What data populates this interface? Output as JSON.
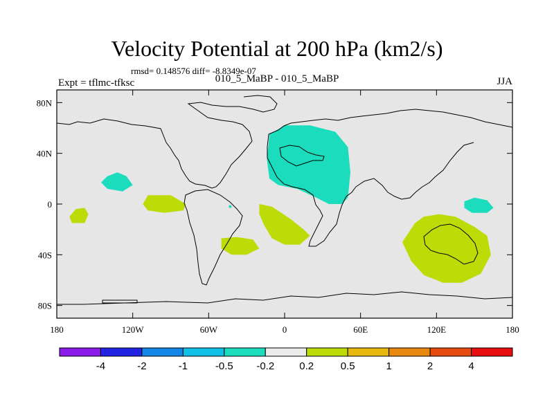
{
  "chart_data": {
    "type": "heatmap",
    "title": "Velocity Potential at 200 hPa (km2/s)",
    "stats": "rmsd= 0.148576 diff= -8.8349e-07",
    "left_label": "Expt = tflmc-tfksc",
    "center_label": "010_5_MaBP - 010_5_MaBP",
    "right_label": "JJA",
    "projection": "cylindrical-equidistant",
    "xlim": [
      -180,
      180
    ],
    "ylim": [
      -90,
      90
    ],
    "x_ticks": [
      {
        "value": -180,
        "label": "180"
      },
      {
        "value": -120,
        "label": "120W"
      },
      {
        "value": -60,
        "label": "60W"
      },
      {
        "value": 0,
        "label": "0"
      },
      {
        "value": 60,
        "label": "60E"
      },
      {
        "value": 120,
        "label": "120E"
      },
      {
        "value": 180,
        "label": "180"
      }
    ],
    "y_ticks": [
      {
        "value": 80,
        "label": "80N"
      },
      {
        "value": 40,
        "label": "40N"
      },
      {
        "value": 0,
        "label": "0"
      },
      {
        "value": -40,
        "label": "40S"
      },
      {
        "value": -80,
        "label": "80S"
      }
    ],
    "background_color": "#e6e6e6",
    "colorbar": {
      "colors": [
        "#8a1be8",
        "#2323e3",
        "#1487e6",
        "#0ebfe6",
        "#1cdcbe",
        "#ebebeb",
        "#bddc07",
        "#e6b70c",
        "#e8880e",
        "#e64a0e",
        "#e60e0e"
      ],
      "labels": [
        "-4",
        "-2",
        "-1",
        "-0.5",
        "-0.2",
        "0.2",
        "0.5",
        "1",
        "2",
        "4"
      ]
    },
    "anomaly_regions": [
      {
        "name": "north-africa-arabia",
        "sign": "negative",
        "color": "#1cdcbe",
        "points": [
          [
            -12,
            55
          ],
          [
            0,
            62
          ],
          [
            20,
            62
          ],
          [
            40,
            57
          ],
          [
            50,
            45
          ],
          [
            52,
            25
          ],
          [
            50,
            5
          ],
          [
            45,
            0
          ],
          [
            35,
            0
          ],
          [
            25,
            5
          ],
          [
            10,
            12
          ],
          [
            -5,
            15
          ],
          [
            -12,
            20
          ],
          [
            -14,
            35
          ]
        ]
      },
      {
        "name": "north-pacific",
        "sign": "negative",
        "color": "#1cdcbe",
        "points": [
          [
            -140,
            22
          ],
          [
            -132,
            25
          ],
          [
            -125,
            22
          ],
          [
            -120,
            15
          ],
          [
            -128,
            10
          ],
          [
            -140,
            12
          ],
          [
            -145,
            17
          ]
        ]
      },
      {
        "name": "equatorial-atlantic-speck",
        "sign": "negative",
        "color": "#1cdcbe",
        "points": [
          [
            -44,
            -1
          ],
          [
            -42,
            -1
          ],
          [
            -42,
            -3
          ],
          [
            -44,
            -3
          ]
        ]
      },
      {
        "name": "west-pacific",
        "sign": "negative",
        "color": "#1cdcbe",
        "points": [
          [
            142,
            2
          ],
          [
            150,
            5
          ],
          [
            160,
            3
          ],
          [
            165,
            -3
          ],
          [
            160,
            -7
          ],
          [
            148,
            -7
          ],
          [
            142,
            -3
          ]
        ]
      },
      {
        "name": "south-pacific-east",
        "sign": "positive",
        "color": "#bddc07",
        "points": [
          [
            -108,
            7
          ],
          [
            -90,
            7
          ],
          [
            -78,
            0
          ],
          [
            -80,
            -5
          ],
          [
            -95,
            -7
          ],
          [
            -108,
            -5
          ],
          [
            -112,
            0
          ]
        ]
      },
      {
        "name": "south-pacific-west",
        "sign": "positive",
        "color": "#bddc07",
        "points": [
          [
            -165,
            -4
          ],
          [
            -158,
            -3
          ],
          [
            -155,
            -8
          ],
          [
            -158,
            -15
          ],
          [
            -168,
            -15
          ],
          [
            -170,
            -10
          ]
        ]
      },
      {
        "name": "south-atlantic",
        "sign": "positive",
        "color": "#bddc07",
        "points": [
          [
            -20,
            0
          ],
          [
            -10,
            -2
          ],
          [
            5,
            -12
          ],
          [
            15,
            -20
          ],
          [
            20,
            -25
          ],
          [
            12,
            -32
          ],
          [
            0,
            -32
          ],
          [
            -10,
            -27
          ],
          [
            -16,
            -17
          ],
          [
            -20,
            -8
          ]
        ]
      },
      {
        "name": "south-atlantic-west",
        "sign": "positive",
        "color": "#bddc07",
        "points": [
          [
            -50,
            -27
          ],
          [
            -38,
            -26
          ],
          [
            -25,
            -28
          ],
          [
            -20,
            -35
          ],
          [
            -30,
            -40
          ],
          [
            -42,
            -40
          ],
          [
            -50,
            -35
          ]
        ]
      },
      {
        "name": "australia-indian-ocean",
        "sign": "positive",
        "color": "#bddc07",
        "points": [
          [
            103,
            -15
          ],
          [
            110,
            -10
          ],
          [
            122,
            -8
          ],
          [
            135,
            -10
          ],
          [
            150,
            -18
          ],
          [
            160,
            -25
          ],
          [
            163,
            -40
          ],
          [
            155,
            -55
          ],
          [
            140,
            -62
          ],
          [
            125,
            -62
          ],
          [
            110,
            -56
          ],
          [
            100,
            -45
          ],
          [
            93,
            -30
          ]
        ]
      }
    ]
  }
}
